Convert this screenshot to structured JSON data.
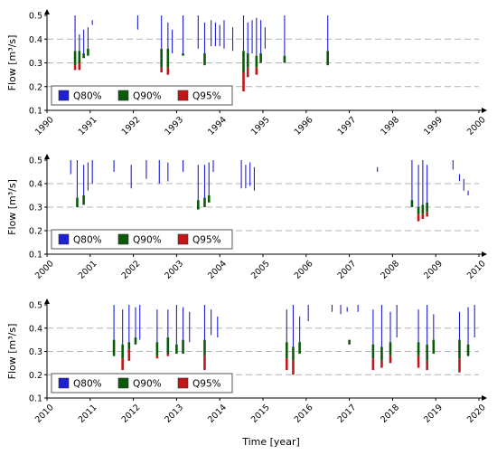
{
  "xlabel": "Time [year]",
  "legend": [
    {
      "label": "Q80%",
      "color": "#1f1fd6"
    },
    {
      "label": "Q90%",
      "color": "#0a5a0a"
    },
    {
      "label": "Q95%",
      "color": "#c01818"
    }
  ],
  "colors": {
    "q80": "#1f1fd6",
    "q90": "#0a5a0a",
    "q95": "#c01818",
    "grid": "#b4b4b4"
  },
  "chart_data": [
    {
      "type": "line",
      "ylabel": "Flow [m³/s]",
      "xlim": [
        1990,
        2000
      ],
      "ylim": [
        0.1,
        0.5
      ],
      "yticks": [
        "0.1",
        "0.2",
        "0.3",
        "0.4",
        "0.5"
      ],
      "xticks": [
        "1990",
        "1991",
        "1992",
        "1993",
        "1994",
        "1995",
        "1996",
        "1997",
        "1998",
        "1999",
        "2000"
      ],
      "grid": true,
      "legend_position": "bottom-left",
      "series": [
        {
          "name": "Q80%",
          "events": [
            [
              1990.65,
              0.5,
              0.35
            ],
            [
              1990.75,
              0.42,
              0.35
            ],
            [
              1990.85,
              0.44,
              0.34
            ],
            [
              1990.95,
              0.45,
              0.36
            ],
            [
              1991.05,
              0.48,
              0.46
            ],
            [
              1992.1,
              0.5,
              0.44
            ],
            [
              1992.65,
              0.5,
              0.36
            ],
            [
              1992.8,
              0.47,
              0.36
            ],
            [
              1992.9,
              0.44,
              0.34
            ],
            [
              1993.15,
              0.5,
              0.34
            ],
            [
              1993.5,
              0.5,
              0.36
            ],
            [
              1993.65,
              0.47,
              0.34
            ],
            [
              1993.8,
              0.48,
              0.37
            ],
            [
              1993.9,
              0.47,
              0.37
            ],
            [
              1994.0,
              0.46,
              0.37
            ],
            [
              1994.1,
              0.48,
              0.36
            ],
            [
              1994.3,
              0.45,
              0.35
            ],
            [
              1994.55,
              0.5,
              0.35
            ],
            [
              1994.65,
              0.47,
              0.34
            ],
            [
              1994.75,
              0.48,
              0.34
            ],
            [
              1994.85,
              0.49,
              0.33
            ],
            [
              1994.95,
              0.48,
              0.34
            ],
            [
              1995.05,
              0.45,
              0.36
            ],
            [
              1995.5,
              0.5,
              0.33
            ],
            [
              1996.5,
              0.5,
              0.35
            ]
          ]
        },
        {
          "name": "Q90%",
          "events": [
            [
              1990.65,
              0.35,
              0.29
            ],
            [
              1990.75,
              0.35,
              0.3
            ],
            [
              1990.85,
              0.34,
              0.32
            ],
            [
              1990.95,
              0.36,
              0.33
            ],
            [
              1992.65,
              0.36,
              0.28
            ],
            [
              1992.8,
              0.36,
              0.28
            ],
            [
              1993.15,
              0.34,
              0.33
            ],
            [
              1993.65,
              0.34,
              0.29
            ],
            [
              1994.55,
              0.35,
              0.26
            ],
            [
              1994.65,
              0.34,
              0.28
            ],
            [
              1994.85,
              0.33,
              0.28
            ],
            [
              1994.95,
              0.34,
              0.3
            ],
            [
              1995.5,
              0.33,
              0.3
            ],
            [
              1996.5,
              0.35,
              0.29
            ]
          ]
        },
        {
          "name": "Q95%",
          "events": [
            [
              1990.65,
              0.29,
              0.27
            ],
            [
              1990.75,
              0.3,
              0.27
            ],
            [
              1992.65,
              0.28,
              0.26
            ],
            [
              1992.8,
              0.28,
              0.25
            ],
            [
              1994.55,
              0.26,
              0.18
            ],
            [
              1994.65,
              0.28,
              0.24
            ],
            [
              1994.85,
              0.28,
              0.25
            ]
          ]
        }
      ]
    },
    {
      "type": "line",
      "ylabel": "Flow [m³/s]",
      "xlim": [
        2000,
        2010
      ],
      "ylim": [
        0.1,
        0.5
      ],
      "yticks": [
        "0.1",
        "0.2",
        "0.3",
        "0.4",
        "0.5"
      ],
      "xticks": [
        "2000",
        "2001",
        "2002",
        "2003",
        "2004",
        "2005",
        "2006",
        "2007",
        "2008",
        "2009",
        "2010"
      ],
      "grid": true,
      "legend_position": "bottom-left",
      "series": [
        {
          "name": "Q80%",
          "events": [
            [
              2000.55,
              0.5,
              0.44
            ],
            [
              2000.7,
              0.5,
              0.34
            ],
            [
              2000.85,
              0.48,
              0.35
            ],
            [
              2000.95,
              0.49,
              0.37
            ],
            [
              2001.05,
              0.5,
              0.4
            ],
            [
              2001.55,
              0.5,
              0.45
            ],
            [
              2001.95,
              0.48,
              0.38
            ],
            [
              2002.3,
              0.5,
              0.42
            ],
            [
              2002.6,
              0.5,
              0.4
            ],
            [
              2002.8,
              0.49,
              0.41
            ],
            [
              2003.15,
              0.5,
              0.45
            ],
            [
              2003.5,
              0.48,
              0.33
            ],
            [
              2003.65,
              0.48,
              0.34
            ],
            [
              2003.75,
              0.49,
              0.35
            ],
            [
              2003.85,
              0.5,
              0.45
            ],
            [
              2004.5,
              0.5,
              0.38
            ],
            [
              2004.6,
              0.48,
              0.38
            ],
            [
              2004.7,
              0.49,
              0.39
            ],
            [
              2004.8,
              0.47,
              0.37
            ],
            [
              2007.65,
              0.47,
              0.45
            ],
            [
              2008.45,
              0.5,
              0.33
            ],
            [
              2008.6,
              0.48,
              0.3
            ],
            [
              2008.7,
              0.5,
              0.31
            ],
            [
              2008.8,
              0.48,
              0.32
            ],
            [
              2009.4,
              0.5,
              0.46
            ],
            [
              2009.55,
              0.44,
              0.41
            ],
            [
              2009.65,
              0.42,
              0.37
            ],
            [
              2009.75,
              0.37,
              0.35
            ]
          ]
        },
        {
          "name": "Q90%",
          "events": [
            [
              2000.7,
              0.34,
              0.3
            ],
            [
              2000.85,
              0.35,
              0.31
            ],
            [
              2003.5,
              0.33,
              0.29
            ],
            [
              2003.65,
              0.34,
              0.3
            ],
            [
              2003.75,
              0.35,
              0.32
            ],
            [
              2008.45,
              0.33,
              0.3
            ],
            [
              2008.6,
              0.3,
              0.27
            ],
            [
              2008.7,
              0.31,
              0.27
            ],
            [
              2008.8,
              0.32,
              0.28
            ]
          ]
        },
        {
          "name": "Q95%",
          "events": [
            [
              2008.6,
              0.27,
              0.24
            ],
            [
              2008.7,
              0.27,
              0.25
            ],
            [
              2008.8,
              0.28,
              0.26
            ]
          ]
        }
      ]
    },
    {
      "type": "line",
      "ylabel": "Flow [m³/s]",
      "xlim": [
        2010,
        2020
      ],
      "ylim": [
        0.1,
        0.5
      ],
      "yticks": [
        "0.1",
        "0.2",
        "0.3",
        "0.4",
        "0.5"
      ],
      "xticks": [
        "2010",
        "2011",
        "2012",
        "2013",
        "2014",
        "2015",
        "2016",
        "2017",
        "2018",
        "2019",
        "2020"
      ],
      "grid": true,
      "legend_position": "bottom-left",
      "series": [
        {
          "name": "Q80%",
          "events": [
            [
              2011.55,
              0.5,
              0.35
            ],
            [
              2011.75,
              0.48,
              0.33
            ],
            [
              2011.9,
              0.5,
              0.34
            ],
            [
              2012.05,
              0.49,
              0.36
            ],
            [
              2012.15,
              0.5,
              0.35
            ],
            [
              2012.55,
              0.48,
              0.34
            ],
            [
              2012.8,
              0.48,
              0.36
            ],
            [
              2013.0,
              0.5,
              0.33
            ],
            [
              2013.15,
              0.49,
              0.35
            ],
            [
              2013.3,
              0.47,
              0.34
            ],
            [
              2013.65,
              0.5,
              0.35
            ],
            [
              2013.8,
              0.48,
              0.37
            ],
            [
              2013.95,
              0.45,
              0.36
            ],
            [
              2015.55,
              0.48,
              0.34
            ],
            [
              2015.7,
              0.5,
              0.32
            ],
            [
              2015.85,
              0.45,
              0.34
            ],
            [
              2016.05,
              0.5,
              0.43
            ],
            [
              2016.6,
              0.5,
              0.47
            ],
            [
              2016.8,
              0.5,
              0.46
            ],
            [
              2016.95,
              0.49,
              0.47
            ],
            [
              2017.2,
              0.5,
              0.47
            ],
            [
              2017.55,
              0.48,
              0.33
            ],
            [
              2017.75,
              0.5,
              0.32
            ],
            [
              2017.95,
              0.47,
              0.34
            ],
            [
              2018.1,
              0.5,
              0.36
            ],
            [
              2018.6,
              0.48,
              0.34
            ],
            [
              2018.8,
              0.5,
              0.33
            ],
            [
              2018.95,
              0.46,
              0.35
            ],
            [
              2019.55,
              0.47,
              0.35
            ],
            [
              2019.75,
              0.49,
              0.33
            ],
            [
              2019.9,
              0.5,
              0.36
            ]
          ]
        },
        {
          "name": "Q90%",
          "events": [
            [
              2011.55,
              0.35,
              0.28
            ],
            [
              2011.75,
              0.33,
              0.27
            ],
            [
              2011.9,
              0.34,
              0.31
            ],
            [
              2012.05,
              0.36,
              0.33
            ],
            [
              2012.55,
              0.34,
              0.28
            ],
            [
              2012.8,
              0.36,
              0.29
            ],
            [
              2013.0,
              0.33,
              0.29
            ],
            [
              2013.15,
              0.35,
              0.29
            ],
            [
              2013.65,
              0.35,
              0.28
            ],
            [
              2015.55,
              0.34,
              0.27
            ],
            [
              2015.7,
              0.32,
              0.26
            ],
            [
              2015.85,
              0.34,
              0.29
            ],
            [
              2017.0,
              0.35,
              0.33
            ],
            [
              2017.55,
              0.33,
              0.27
            ],
            [
              2017.75,
              0.32,
              0.26
            ],
            [
              2017.95,
              0.34,
              0.28
            ],
            [
              2018.6,
              0.34,
              0.28
            ],
            [
              2018.8,
              0.33,
              0.26
            ],
            [
              2018.95,
              0.35,
              0.29
            ],
            [
              2019.55,
              0.35,
              0.27
            ],
            [
              2019.75,
              0.33,
              0.28
            ]
          ]
        },
        {
          "name": "Q95%",
          "events": [
            [
              2011.75,
              0.27,
              0.22
            ],
            [
              2011.9,
              0.31,
              0.26
            ],
            [
              2012.55,
              0.28,
              0.27
            ],
            [
              2012.8,
              0.29,
              0.28
            ],
            [
              2013.65,
              0.28,
              0.22
            ],
            [
              2015.55,
              0.27,
              0.22
            ],
            [
              2015.7,
              0.26,
              0.2
            ],
            [
              2017.55,
              0.27,
              0.22
            ],
            [
              2017.75,
              0.26,
              0.23
            ],
            [
              2017.95,
              0.28,
              0.25
            ],
            [
              2018.6,
              0.28,
              0.23
            ],
            [
              2018.8,
              0.26,
              0.22
            ],
            [
              2019.55,
              0.27,
              0.21
            ]
          ]
        }
      ]
    }
  ]
}
